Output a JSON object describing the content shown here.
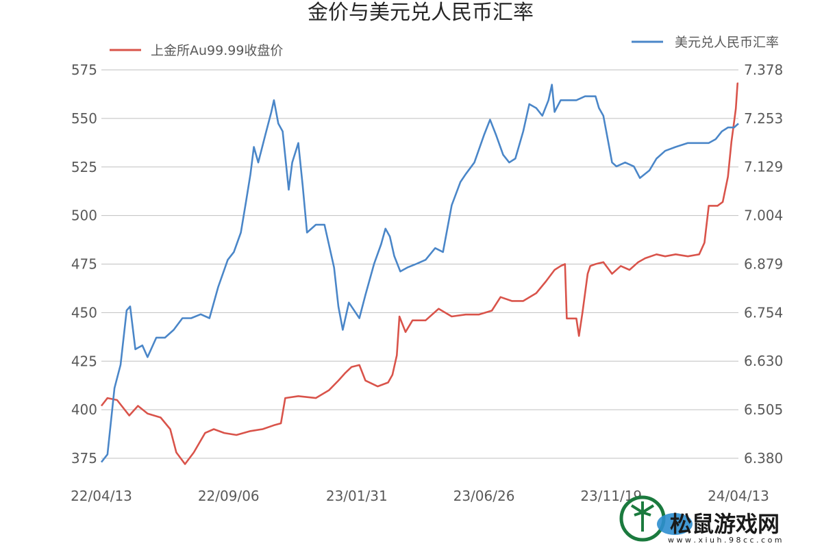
{
  "chart_data": {
    "type": "line",
    "title": "金价与美元兑人民币汇率",
    "x_ticks": [
      "22/04/13",
      "22/09/06",
      "23/01/31",
      "23/06/26",
      "23/11/19",
      "24/04/13"
    ],
    "x_start": "22/04/13",
    "x_end": "24/04/13",
    "y_left": {
      "min": 375,
      "max": 575,
      "ticks": [
        "375",
        "400",
        "425",
        "450",
        "475",
        "500",
        "525",
        "550",
        "575"
      ]
    },
    "y_right": {
      "min": 6.38,
      "max": 7.378,
      "ticks": [
        "6.380",
        "6.505",
        "6.630",
        "6.754",
        "6.879",
        "7.004",
        "7.129",
        "7.253",
        "7.378"
      ]
    },
    "grid": true,
    "legend": "top",
    "series": [
      {
        "name": "上金所Au99.99收盘价",
        "axis": "left",
        "color": "#d9534a",
        "points": [
          [
            "22/04/13",
            402
          ],
          [
            "22/04/20",
            406
          ],
          [
            "22/05/01",
            405
          ],
          [
            "22/05/15",
            397
          ],
          [
            "22/05/25",
            402
          ],
          [
            "22/06/05",
            398
          ],
          [
            "22/06/20",
            396
          ],
          [
            "22/07/01",
            390
          ],
          [
            "22/07/08",
            378
          ],
          [
            "22/07/18",
            372
          ],
          [
            "22/07/28",
            378
          ],
          [
            "22/08/10",
            388
          ],
          [
            "22/08/20",
            390
          ],
          [
            "22/09/01",
            388
          ],
          [
            "22/09/15",
            387
          ],
          [
            "22/10/01",
            389
          ],
          [
            "22/10/15",
            390
          ],
          [
            "22/10/28",
            392
          ],
          [
            "22/11/05",
            393
          ],
          [
            "22/11/10",
            406
          ],
          [
            "22/11/25",
            407
          ],
          [
            "22/12/15",
            406
          ],
          [
            "22/12/30",
            410
          ],
          [
            "23/01/10",
            415
          ],
          [
            "23/01/18",
            419
          ],
          [
            "23/01/25",
            422
          ],
          [
            "23/02/03",
            423
          ],
          [
            "23/02/10",
            415
          ],
          [
            "23/02/24",
            412
          ],
          [
            "23/03/08",
            414
          ],
          [
            "23/03/13",
            418
          ],
          [
            "23/03/18",
            428
          ],
          [
            "23/03/21",
            448
          ],
          [
            "23/03/28",
            440
          ],
          [
            "23/04/05",
            446
          ],
          [
            "23/04/20",
            446
          ],
          [
            "23/05/05",
            452
          ],
          [
            "23/05/20",
            448
          ],
          [
            "23/06/05",
            449
          ],
          [
            "23/06/20",
            449
          ],
          [
            "23/07/05",
            451
          ],
          [
            "23/07/15",
            458
          ],
          [
            "23/07/28",
            456
          ],
          [
            "23/08/10",
            456
          ],
          [
            "23/08/25",
            460
          ],
          [
            "23/09/05",
            466
          ],
          [
            "23/09/15",
            472
          ],
          [
            "23/09/22",
            474
          ],
          [
            "23/09/27",
            475
          ],
          [
            "23/09/29",
            447
          ],
          [
            "23/10/10",
            447
          ],
          [
            "23/10/13",
            438
          ],
          [
            "23/10/17",
            450
          ],
          [
            "23/10/23",
            470
          ],
          [
            "23/10/26",
            474
          ],
          [
            "23/11/01",
            475
          ],
          [
            "23/11/10",
            476
          ],
          [
            "23/11/20",
            470
          ],
          [
            "23/11/30",
            474
          ],
          [
            "23/12/10",
            472
          ],
          [
            "23/12/20",
            476
          ],
          [
            "23/12/28",
            478
          ],
          [
            "24/01/10",
            480
          ],
          [
            "24/01/20",
            479
          ],
          [
            "24/02/01",
            480
          ],
          [
            "24/02/15",
            479
          ],
          [
            "24/02/28",
            480
          ],
          [
            "24/03/05",
            486
          ],
          [
            "24/03/10",
            505
          ],
          [
            "24/03/20",
            505
          ],
          [
            "24/03/26",
            507
          ],
          [
            "24/04/01",
            520
          ],
          [
            "24/04/05",
            538
          ],
          [
            "24/04/08",
            548
          ],
          [
            "24/04/10",
            555
          ],
          [
            "24/04/12",
            568
          ],
          [
            "24/04/13",
            568
          ]
        ]
      },
      {
        "name": "美元兑人民币汇率",
        "axis": "right",
        "color": "#4a86c8",
        "points": [
          [
            "22/04/13",
            6.37
          ],
          [
            "22/04/20",
            6.39
          ],
          [
            "22/04/28",
            6.56
          ],
          [
            "22/05/05",
            6.62
          ],
          [
            "22/05/12",
            6.76
          ],
          [
            "22/05/16",
            6.77
          ],
          [
            "22/05/22",
            6.66
          ],
          [
            "22/05/30",
            6.67
          ],
          [
            "22/06/05",
            6.64
          ],
          [
            "22/06/15",
            6.69
          ],
          [
            "22/06/25",
            6.69
          ],
          [
            "22/07/05",
            6.71
          ],
          [
            "22/07/15",
            6.74
          ],
          [
            "22/07/25",
            6.74
          ],
          [
            "22/08/05",
            6.75
          ],
          [
            "22/08/15",
            6.74
          ],
          [
            "22/08/25",
            6.82
          ],
          [
            "22/09/05",
            6.89
          ],
          [
            "22/09/12",
            6.91
          ],
          [
            "22/09/20",
            6.96
          ],
          [
            "22/09/26",
            7.04
          ],
          [
            "22/10/01",
            7.11
          ],
          [
            "22/10/05",
            7.18
          ],
          [
            "22/10/10",
            7.14
          ],
          [
            "22/10/18",
            7.21
          ],
          [
            "22/10/25",
            7.27
          ],
          [
            "22/10/28",
            7.3
          ],
          [
            "22/11/02",
            7.24
          ],
          [
            "22/11/07",
            7.22
          ],
          [
            "22/11/14",
            7.07
          ],
          [
            "22/11/18",
            7.14
          ],
          [
            "22/11/25",
            7.19
          ],
          [
            "22/11/30",
            7.08
          ],
          [
            "22/12/05",
            6.96
          ],
          [
            "22/12/15",
            6.98
          ],
          [
            "22/12/25",
            6.98
          ],
          [
            "23/01/05",
            6.87
          ],
          [
            "23/01/10",
            6.77
          ],
          [
            "23/01/15",
            6.71
          ],
          [
            "23/01/22",
            6.78
          ],
          [
            "23/02/03",
            6.74
          ],
          [
            "23/02/10",
            6.8
          ],
          [
            "23/02/20",
            6.88
          ],
          [
            "23/02/28",
            6.93
          ],
          [
            "23/03/05",
            6.97
          ],
          [
            "23/03/10",
            6.95
          ],
          [
            "23/03/15",
            6.9
          ],
          [
            "23/03/22",
            6.86
          ],
          [
            "23/03/30",
            6.87
          ],
          [
            "23/04/10",
            6.88
          ],
          [
            "23/04/20",
            6.89
          ],
          [
            "23/05/01",
            6.92
          ],
          [
            "23/05/10",
            6.91
          ],
          [
            "23/05/20",
            7.03
          ],
          [
            "23/05/30",
            7.09
          ],
          [
            "23/06/05",
            7.11
          ],
          [
            "23/06/15",
            7.14
          ],
          [
            "23/06/26",
            7.21
          ],
          [
            "23/07/03",
            7.25
          ],
          [
            "23/07/10",
            7.21
          ],
          [
            "23/07/18",
            7.16
          ],
          [
            "23/07/25",
            7.14
          ],
          [
            "23/08/01",
            7.15
          ],
          [
            "23/08/10",
            7.22
          ],
          [
            "23/08/17",
            7.29
          ],
          [
            "23/08/25",
            7.28
          ],
          [
            "23/09/01",
            7.26
          ],
          [
            "23/09/08",
            7.3
          ],
          [
            "23/09/12",
            7.34
          ],
          [
            "23/09/15",
            7.27
          ],
          [
            "23/09/22",
            7.3
          ],
          [
            "23/10/01",
            7.3
          ],
          [
            "23/10/10",
            7.3
          ],
          [
            "23/10/20",
            7.31
          ],
          [
            "23/11/01",
            7.31
          ],
          [
            "23/11/05",
            7.28
          ],
          [
            "23/11/10",
            7.26
          ],
          [
            "23/11/15",
            7.2
          ],
          [
            "23/11/20",
            7.14
          ],
          [
            "23/11/25",
            7.13
          ],
          [
            "23/12/05",
            7.14
          ],
          [
            "23/12/15",
            7.13
          ],
          [
            "23/12/22",
            7.1
          ],
          [
            "24/01/02",
            7.12
          ],
          [
            "24/01/10",
            7.15
          ],
          [
            "24/01/20",
            7.17
          ],
          [
            "24/02/01",
            7.18
          ],
          [
            "24/02/15",
            7.19
          ],
          [
            "24/02/28",
            7.19
          ],
          [
            "24/03/10",
            7.19
          ],
          [
            "24/03/18",
            7.2
          ],
          [
            "24/03/25",
            7.22
          ],
          [
            "24/04/01",
            7.23
          ],
          [
            "24/04/08",
            7.23
          ],
          [
            "24/04/13",
            7.24
          ]
        ]
      }
    ]
  },
  "watermark": {
    "text": "松鼠游戏网",
    "url": "w w w . x i u h . 9 8 c c . c o m",
    "logo_color": "#1b7a3e",
    "accent_color": "#2d8ecf"
  }
}
